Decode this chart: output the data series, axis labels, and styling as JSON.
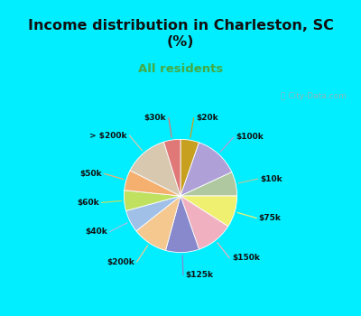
{
  "title": "Income distribution in Charleston, SC\n(%)",
  "subtitle": "All residents",
  "title_color": "#111111",
  "subtitle_color": "#44aa44",
  "bg_cyan": "#00eeff",
  "bg_chart": "#e0f0e8",
  "watermark": "ⓘ City-Data.com",
  "labels": [
    "$20k",
    "$100k",
    "$10k",
    "$75k",
    "$150k",
    "$125k",
    "$200k",
    "$40k",
    "$60k",
    "$50k",
    "> $200k",
    "$30k"
  ],
  "values": [
    5.0,
    12.0,
    6.5,
    8.5,
    10.0,
    9.0,
    9.5,
    6.0,
    5.5,
    5.5,
    12.0,
    4.5
  ],
  "colors": [
    "#c8a020",
    "#b0a0d8",
    "#b0c8a0",
    "#f0f070",
    "#f0b0c0",
    "#8888cc",
    "#f5c890",
    "#a0c0e8",
    "#c0e060",
    "#f5b070",
    "#d8c8b0",
    "#e07878"
  ],
  "startangle": 90,
  "figsize": [
    4.0,
    3.5
  ],
  "dpi": 100
}
